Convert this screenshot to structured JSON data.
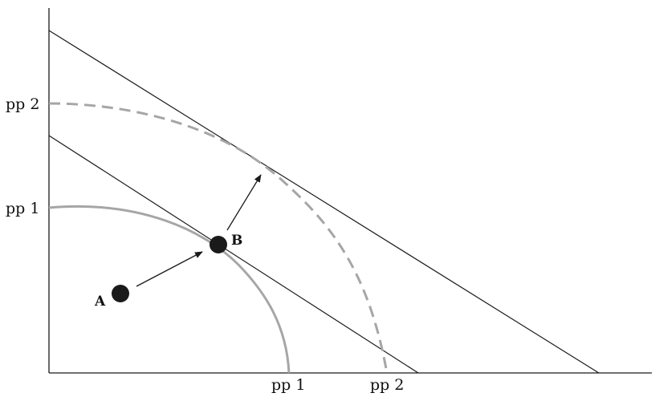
{
  "labels": {
    "y_pp2": "pp 2",
    "y_pp1": "pp 1",
    "x_pp1": "pp 1",
    "x_pp2": "pp 2",
    "point_a": "A",
    "point_b": "B"
  },
  "colors": {
    "axis": "#1a1a1a",
    "tangent_line": "#1a1a1a",
    "frontier": "#a6a6a6",
    "point": "#1a1a1a",
    "background": "#ffffff"
  }
}
